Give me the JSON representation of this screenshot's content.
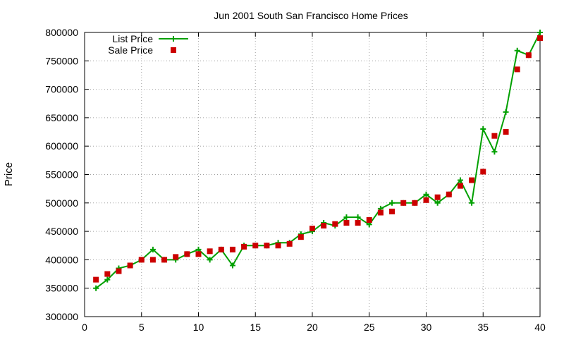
{
  "chart_data": {
    "type": "line",
    "title": "Jun 2001 South San Francisco Home Prices",
    "xlabel": "",
    "ylabel": "Price",
    "xlim": [
      0,
      40
    ],
    "ylim": [
      300000,
      800000
    ],
    "x_ticks": [
      "0",
      "5",
      "10",
      "15",
      "20",
      "25",
      "30",
      "35",
      "40"
    ],
    "y_ticks": [
      "300000",
      "350000",
      "400000",
      "450000",
      "500000",
      "550000",
      "600000",
      "650000",
      "700000",
      "750000",
      "800000"
    ],
    "grid": true,
    "legend_position": "top-left",
    "x": [
      1,
      2,
      3,
      4,
      5,
      6,
      7,
      8,
      9,
      10,
      11,
      12,
      13,
      14,
      15,
      16,
      17,
      18,
      19,
      20,
      21,
      22,
      23,
      24,
      25,
      26,
      27,
      28,
      29,
      30,
      31,
      32,
      33,
      34,
      35,
      36,
      37,
      38,
      39,
      40
    ],
    "series": [
      {
        "name": "List Price",
        "style": "line-with-plus",
        "color": "#00a000",
        "values": [
          350000,
          365000,
          385000,
          390000,
          400000,
          418000,
          400000,
          400000,
          410000,
          418000,
          400000,
          418000,
          390000,
          425000,
          425000,
          425000,
          430000,
          430000,
          445000,
          450000,
          465000,
          460000,
          475000,
          475000,
          462000,
          490000,
          500000,
          500000,
          500000,
          515000,
          500000,
          515000,
          540000,
          500000,
          630000,
          590000,
          660000,
          768000,
          760000,
          800000
        ]
      },
      {
        "name": "Sale Price",
        "style": "square-points",
        "color": "#cc0000",
        "values": [
          365000,
          375000,
          380000,
          390000,
          400000,
          400000,
          400000,
          405000,
          410000,
          410000,
          415000,
          418000,
          418000,
          423000,
          425000,
          425000,
          425000,
          428000,
          440000,
          455000,
          460000,
          463000,
          465000,
          465000,
          470000,
          483000,
          485000,
          500000,
          500000,
          505000,
          510000,
          515000,
          530000,
          540000,
          555000,
          618000,
          625000,
          735000,
          760000,
          790000
        ]
      }
    ]
  }
}
